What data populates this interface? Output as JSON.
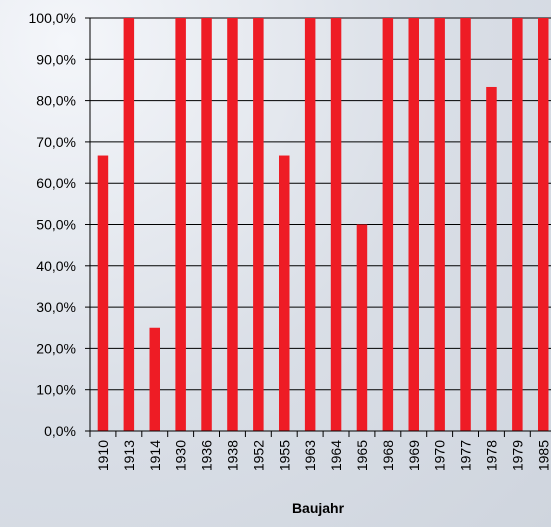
{
  "chart_data": {
    "type": "bar",
    "title": "",
    "xlabel": "Baujahr",
    "ylabel": "",
    "ylim": [
      0,
      100
    ],
    "y_step": 10,
    "y_tick_labels": [
      "0,0%",
      "10,0%",
      "20,0%",
      "30,0%",
      "40,0%",
      "50,0%",
      "60,0%",
      "70,0%",
      "80,0%",
      "90,0%",
      "100,0%"
    ],
    "categories": [
      "1910",
      "1913",
      "1914",
      "1930",
      "1936",
      "1938",
      "1952",
      "1955",
      "1963",
      "1964",
      "1965",
      "1968",
      "1969",
      "1970",
      "1977",
      "1978",
      "1979",
      "1985"
    ],
    "values": [
      66.7,
      100,
      25,
      100,
      100,
      100,
      100,
      66.7,
      100,
      100,
      50,
      100,
      100,
      100,
      100,
      83.3,
      100,
      100
    ],
    "grid": true,
    "legend": "none",
    "colors": {
      "bar": "#ee1c25",
      "grid": "#000000",
      "axis": "#000000"
    }
  }
}
